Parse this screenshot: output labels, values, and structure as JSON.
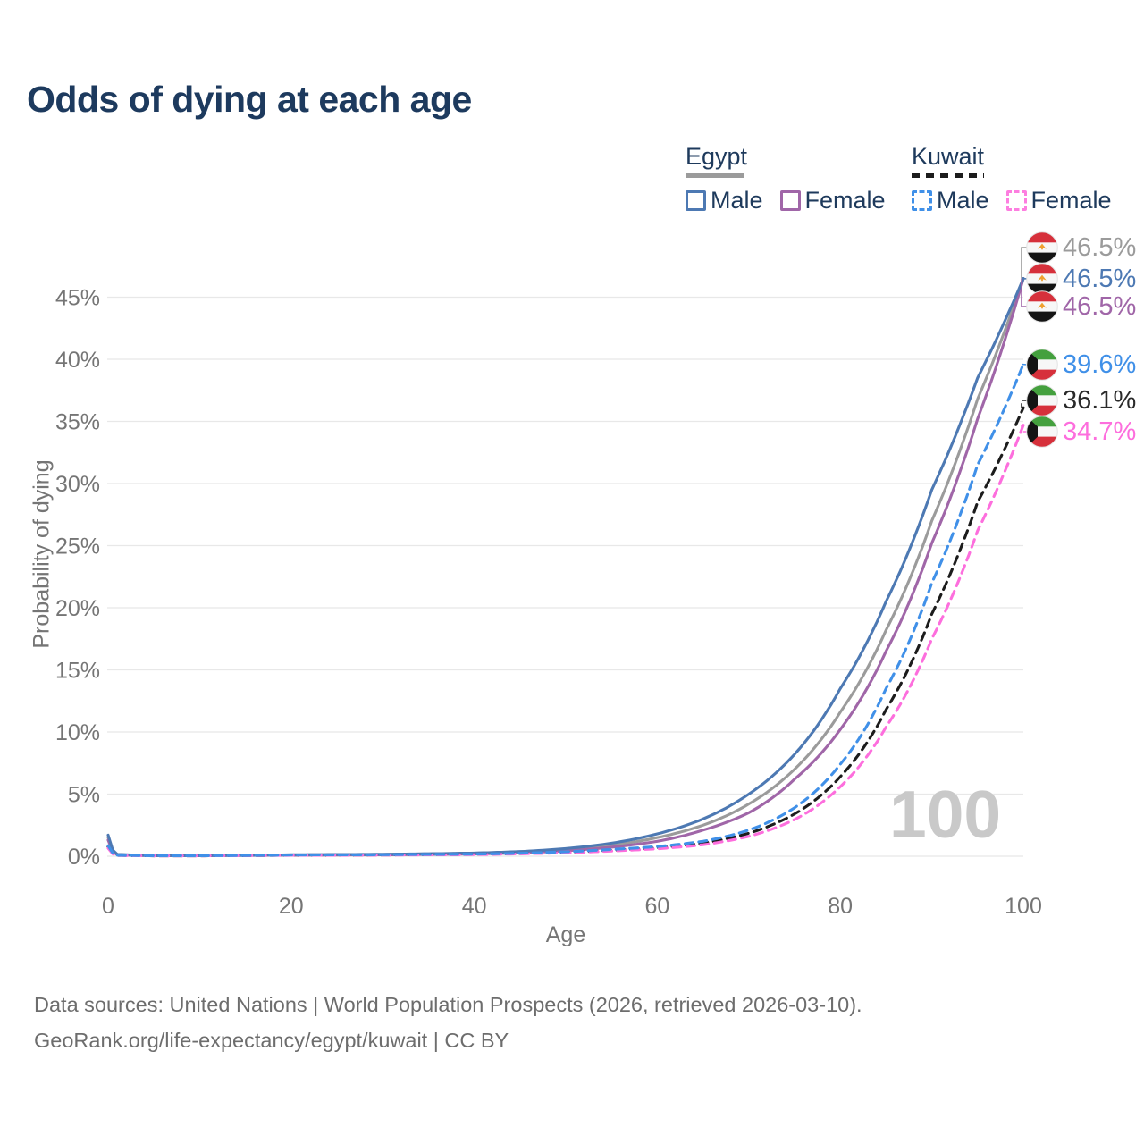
{
  "title": "Odds of dying at each age",
  "legend": {
    "groups": [
      {
        "country": "Egypt",
        "underline_color": "#9b9b9b",
        "underline_style": "solid",
        "items": [
          {
            "label": "Male",
            "color": "#4d79b3",
            "dash": false
          },
          {
            "label": "Female",
            "color": "#a066a8",
            "dash": false
          }
        ]
      },
      {
        "country": "Kuwait",
        "underline_color": "#1c1c1c",
        "underline_style": "dashed",
        "items": [
          {
            "label": "Male",
            "color": "#4090e8",
            "dash": true
          },
          {
            "label": "Female",
            "color": "#fd7ee0",
            "dash": true
          }
        ]
      }
    ]
  },
  "chart_data": {
    "type": "line",
    "title": "Odds of dying at each age",
    "xlabel": "Age",
    "ylabel": "Probability of dying",
    "xlim": [
      0,
      100
    ],
    "ylim": [
      0,
      48
    ],
    "x_ticks": [
      0,
      20,
      40,
      60,
      80,
      100
    ],
    "y_ticks": [
      "0%",
      "5%",
      "10%",
      "15%",
      "20%",
      "25%",
      "30%",
      "35%",
      "40%",
      "45%"
    ],
    "y_tick_values": [
      0,
      5,
      10,
      15,
      20,
      25,
      30,
      35,
      40,
      45
    ],
    "grid": "horizontal",
    "legend_position": "top-right",
    "watermark": "100",
    "series": [
      {
        "name": "Egypt Both sexes",
        "color": "#9b9b9b",
        "dash": false,
        "points": [
          [
            0,
            1.5
          ],
          [
            1,
            0.13
          ],
          [
            5,
            0.05
          ],
          [
            10,
            0.05
          ],
          [
            15,
            0.07
          ],
          [
            20,
            0.1
          ],
          [
            30,
            0.13
          ],
          [
            40,
            0.22
          ],
          [
            45,
            0.32
          ],
          [
            50,
            0.52
          ],
          [
            55,
            0.88
          ],
          [
            60,
            1.5
          ],
          [
            65,
            2.5
          ],
          [
            70,
            4.2
          ],
          [
            75,
            7.0
          ],
          [
            80,
            11.6
          ],
          [
            85,
            18.2
          ],
          [
            90,
            27.0
          ],
          [
            95,
            36.8
          ],
          [
            100,
            46.5
          ]
        ]
      },
      {
        "name": "Egypt Female",
        "color": "#a066a8",
        "dash": false,
        "points": [
          [
            0,
            1.3
          ],
          [
            1,
            0.11
          ],
          [
            5,
            0.04
          ],
          [
            10,
            0.04
          ],
          [
            15,
            0.06
          ],
          [
            20,
            0.08
          ],
          [
            30,
            0.11
          ],
          [
            40,
            0.18
          ],
          [
            45,
            0.27
          ],
          [
            50,
            0.44
          ],
          [
            55,
            0.73
          ],
          [
            60,
            1.2
          ],
          [
            65,
            2.1
          ],
          [
            70,
            3.5
          ],
          [
            75,
            6.2
          ],
          [
            80,
            10.2
          ],
          [
            85,
            16.5
          ],
          [
            90,
            25.2
          ],
          [
            95,
            35.2
          ],
          [
            100,
            46.5
          ]
        ]
      },
      {
        "name": "Egypt Male",
        "color": "#4d79b3",
        "dash": false,
        "points": [
          [
            0,
            1.7
          ],
          [
            1,
            0.15
          ],
          [
            5,
            0.06
          ],
          [
            10,
            0.06
          ],
          [
            15,
            0.08
          ],
          [
            20,
            0.12
          ],
          [
            30,
            0.16
          ],
          [
            40,
            0.26
          ],
          [
            45,
            0.38
          ],
          [
            50,
            0.62
          ],
          [
            55,
            1.05
          ],
          [
            60,
            1.8
          ],
          [
            65,
            3.0
          ],
          [
            70,
            5.0
          ],
          [
            75,
            8.2
          ],
          [
            80,
            13.5
          ],
          [
            85,
            20.5
          ],
          [
            90,
            29.5
          ],
          [
            95,
            38.5
          ],
          [
            100,
            46.5
          ]
        ]
      },
      {
        "name": "Kuwait Both sexes",
        "color": "#1c1c1c",
        "dash": true,
        "points": [
          [
            0,
            0.75
          ],
          [
            1,
            0.07
          ],
          [
            5,
            0.03
          ],
          [
            10,
            0.03
          ],
          [
            15,
            0.05
          ],
          [
            20,
            0.08
          ],
          [
            30,
            0.1
          ],
          [
            40,
            0.15
          ],
          [
            45,
            0.21
          ],
          [
            50,
            0.31
          ],
          [
            55,
            0.47
          ],
          [
            60,
            0.68
          ],
          [
            65,
            1.05
          ],
          [
            70,
            1.85
          ],
          [
            75,
            3.4
          ],
          [
            80,
            6.4
          ],
          [
            85,
            11.8
          ],
          [
            90,
            19.5
          ],
          [
            95,
            28.5
          ],
          [
            100,
            36.1
          ]
        ]
      },
      {
        "name": "Kuwait Female",
        "color": "#fd6edd",
        "dash": true,
        "points": [
          [
            0,
            0.65
          ],
          [
            1,
            0.06
          ],
          [
            5,
            0.03
          ],
          [
            10,
            0.03
          ],
          [
            15,
            0.05
          ],
          [
            20,
            0.07
          ],
          [
            30,
            0.09
          ],
          [
            40,
            0.13
          ],
          [
            45,
            0.19
          ],
          [
            50,
            0.28
          ],
          [
            55,
            0.42
          ],
          [
            60,
            0.6
          ],
          [
            65,
            0.92
          ],
          [
            70,
            1.6
          ],
          [
            75,
            2.95
          ],
          [
            80,
            5.6
          ],
          [
            85,
            10.4
          ],
          [
            90,
            17.5
          ],
          [
            95,
            26.2
          ],
          [
            100,
            34.7
          ]
        ]
      },
      {
        "name": "Kuwait Male",
        "color": "#4090e8",
        "dash": true,
        "points": [
          [
            0,
            0.85
          ],
          [
            1,
            0.08
          ],
          [
            5,
            0.04
          ],
          [
            10,
            0.04
          ],
          [
            15,
            0.06
          ],
          [
            20,
            0.1
          ],
          [
            30,
            0.12
          ],
          [
            40,
            0.17
          ],
          [
            45,
            0.24
          ],
          [
            50,
            0.36
          ],
          [
            55,
            0.55
          ],
          [
            60,
            0.78
          ],
          [
            65,
            1.2
          ],
          [
            70,
            2.1
          ],
          [
            75,
            3.9
          ],
          [
            80,
            7.4
          ],
          [
            85,
            13.5
          ],
          [
            90,
            22.0
          ],
          [
            95,
            31.5
          ],
          [
            100,
            39.6
          ]
        ]
      }
    ],
    "end_labels": [
      {
        "value": "46.5%",
        "end_value": 46.5,
        "color": "#9b9b9b",
        "dash": false,
        "flag": "egypt"
      },
      {
        "value": "46.5%",
        "end_value": 46.5,
        "color": "#4d79b3",
        "dash": false,
        "flag": "egypt"
      },
      {
        "value": "46.5%",
        "end_value": 46.5,
        "color": "#a066a8",
        "dash": false,
        "flag": "egypt"
      },
      {
        "value": "39.6%",
        "end_value": 39.6,
        "color": "#4090e8",
        "dash": true,
        "flag": "kuwait"
      },
      {
        "value": "36.1%",
        "end_value": 36.1,
        "color": "#2a2a2a",
        "dash": true,
        "flag": "kuwait"
      },
      {
        "value": "34.7%",
        "end_value": 34.7,
        "color": "#fd6edd",
        "dash": true,
        "flag": "kuwait"
      }
    ]
  },
  "footer": {
    "line1": "Data sources: United Nations | World Population Prospects (2026, retrieved 2026-03-10).",
    "line2": "GeoRank.org/life-expectancy/egypt/kuwait | CC BY"
  }
}
